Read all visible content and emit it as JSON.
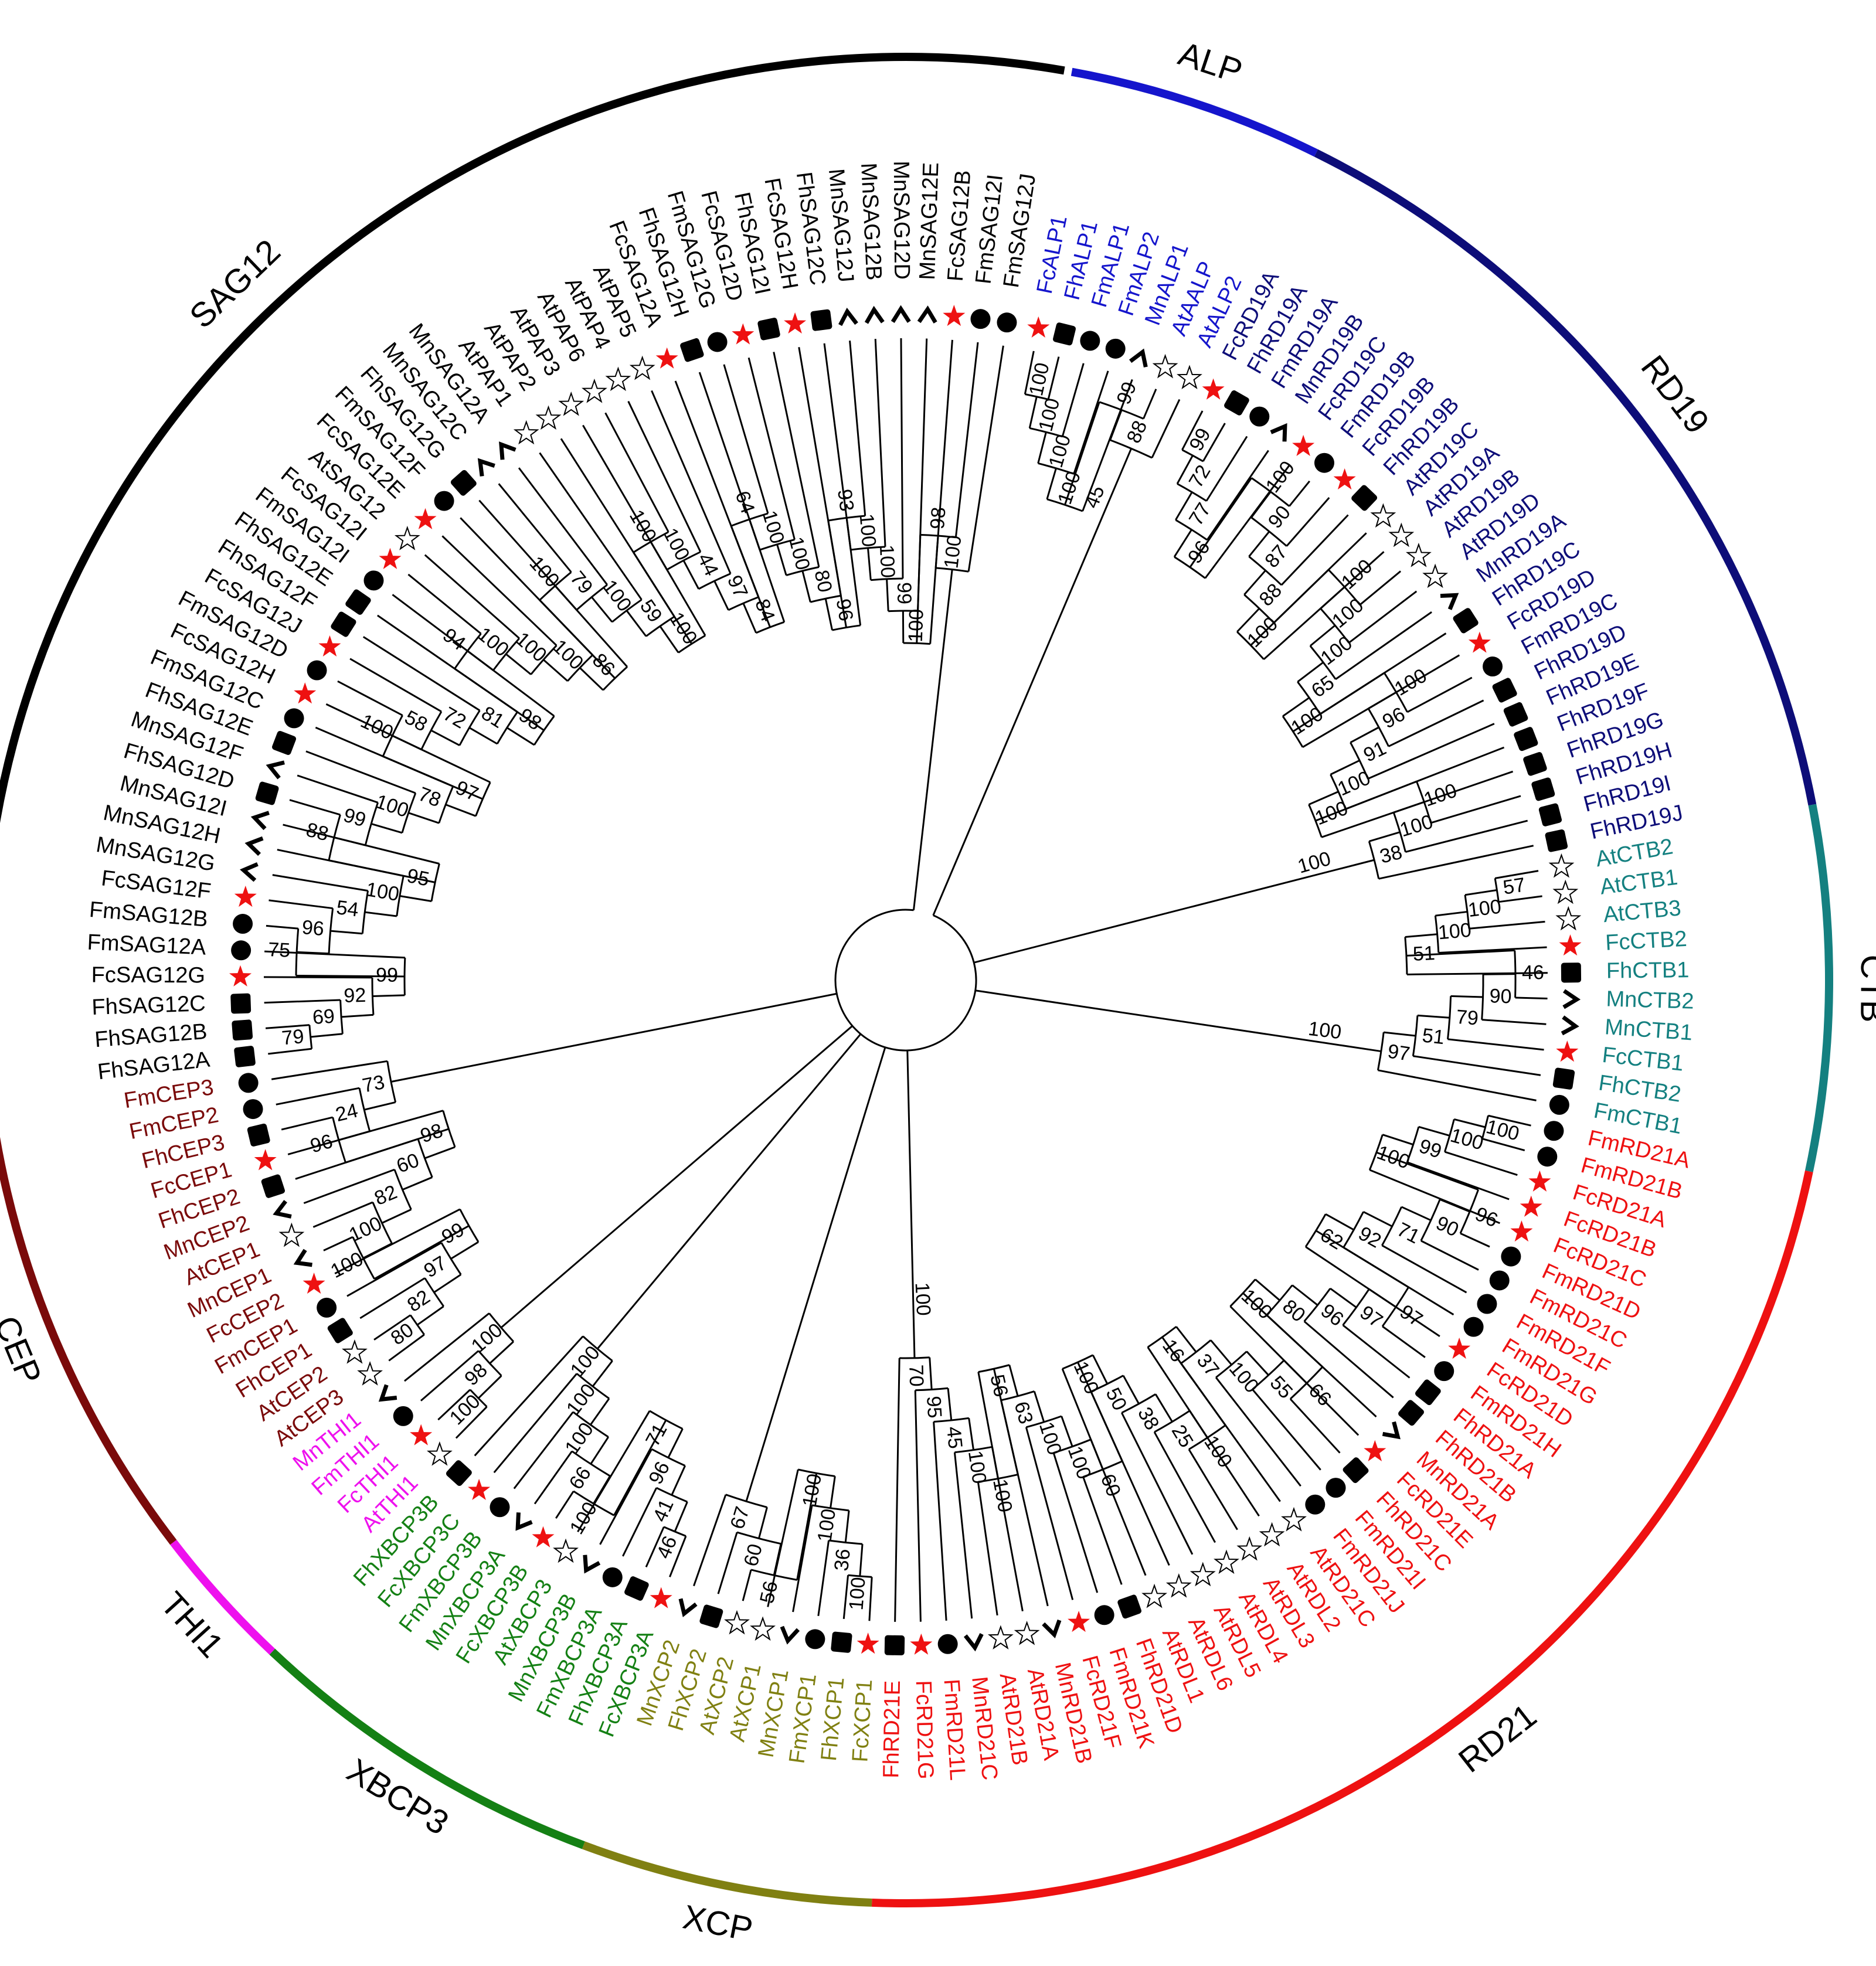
{
  "colors": {
    "ALP": "#1515cc",
    "RD19": "#0d0d78",
    "CTB": "#148080",
    "RD21": "#ee1111",
    "XCP": "#808012",
    "XBCP3": "#148014",
    "THI1": "#ee11ee",
    "CEP": "#7a0a0a",
    "SAG12": "#000000",
    "branch": "#000000",
    "red_star": "#ee1111"
  },
  "marker_legend": {
    "At": "hollow-star-icon",
    "Fc": "red-star-icon",
    "Fm": "circle-icon",
    "Fh": "square-icon",
    "Mn": "chevron-icon"
  },
  "clades": [
    {
      "id": "ALP",
      "label": "ALP",
      "color": "#1515cc"
    },
    {
      "id": "RD19",
      "label": "RD19",
      "color": "#0d0d78"
    },
    {
      "id": "CTB",
      "label": "CTB",
      "color": "#148080"
    },
    {
      "id": "RD21",
      "label": "RD21",
      "color": "#ee1111"
    },
    {
      "id": "XCP",
      "label": "XCP",
      "color": "#808012"
    },
    {
      "id": "XBCP3",
      "label": "XBCP3",
      "color": "#148014"
    },
    {
      "id": "THI1",
      "label": "THI1",
      "color": "#ee11ee"
    },
    {
      "id": "CEP",
      "label": "CEP",
      "color": "#7a0a0a"
    },
    {
      "id": "SAG12",
      "label": "SAG12",
      "color": "#000000"
    }
  ],
  "leaves": [
    {
      "label": "FcALP1",
      "clade": "ALP"
    },
    {
      "label": "FhALP1",
      "clade": "ALP"
    },
    {
      "label": "FmALP1",
      "clade": "ALP"
    },
    {
      "label": "FmALP2",
      "clade": "ALP"
    },
    {
      "label": "MnALP1",
      "clade": "ALP"
    },
    {
      "label": "AtAALP",
      "clade": "ALP"
    },
    {
      "label": "AtALP2",
      "clade": "ALP"
    },
    {
      "label": "FcRD19A",
      "clade": "RD19"
    },
    {
      "label": "FhRD19A",
      "clade": "RD19"
    },
    {
      "label": "FmRD19A",
      "clade": "RD19"
    },
    {
      "label": "MnRD19B",
      "clade": "RD19"
    },
    {
      "label": "FcRD19C",
      "clade": "RD19"
    },
    {
      "label": "FmRD19B",
      "clade": "RD19"
    },
    {
      "label": "FcRD19B",
      "clade": "RD19"
    },
    {
      "label": "FhRD19B",
      "clade": "RD19"
    },
    {
      "label": "AtRD19C",
      "clade": "RD19"
    },
    {
      "label": "AtRD19A",
      "clade": "RD19"
    },
    {
      "label": "AtRD19B",
      "clade": "RD19"
    },
    {
      "label": "AtRD19D",
      "clade": "RD19"
    },
    {
      "label": "MnRD19A",
      "clade": "RD19"
    },
    {
      "label": "FhRD19C",
      "clade": "RD19"
    },
    {
      "label": "FcRD19D",
      "clade": "RD19"
    },
    {
      "label": "FmRD19C",
      "clade": "RD19"
    },
    {
      "label": "FhRD19D",
      "clade": "RD19"
    },
    {
      "label": "FhRD19E",
      "clade": "RD19"
    },
    {
      "label": "FhRD19F",
      "clade": "RD19"
    },
    {
      "label": "FhRD19G",
      "clade": "RD19"
    },
    {
      "label": "FhRD19H",
      "clade": "RD19"
    },
    {
      "label": "FhRD19I",
      "clade": "RD19"
    },
    {
      "label": "FhRD19J",
      "clade": "RD19"
    },
    {
      "label": "AtCTB2",
      "clade": "CTB"
    },
    {
      "label": "AtCTB1",
      "clade": "CTB"
    },
    {
      "label": "AtCTB3",
      "clade": "CTB"
    },
    {
      "label": "FcCTB2",
      "clade": "CTB"
    },
    {
      "label": "FhCTB1",
      "clade": "CTB"
    },
    {
      "label": "MnCTB2",
      "clade": "CTB"
    },
    {
      "label": "MnCTB1",
      "clade": "CTB"
    },
    {
      "label": "FcCTB1",
      "clade": "CTB"
    },
    {
      "label": "FhCTB2",
      "clade": "CTB"
    },
    {
      "label": "FmCTB1",
      "clade": "CTB"
    },
    {
      "label": "FmRD21A",
      "clade": "RD21"
    },
    {
      "label": "FmRD21B",
      "clade": "RD21"
    },
    {
      "label": "FcRD21A",
      "clade": "RD21"
    },
    {
      "label": "FcRD21B",
      "clade": "RD21"
    },
    {
      "label": "FcRD21C",
      "clade": "RD21"
    },
    {
      "label": "FmRD21D",
      "clade": "RD21"
    },
    {
      "label": "FmRD21C",
      "clade": "RD21"
    },
    {
      "label": "FmRD21F",
      "clade": "RD21"
    },
    {
      "label": "FmRD21G",
      "clade": "RD21"
    },
    {
      "label": "FcRD21D",
      "clade": "RD21"
    },
    {
      "label": "FmRD21H",
      "clade": "RD21"
    },
    {
      "label": "FhRD21A",
      "clade": "RD21"
    },
    {
      "label": "FhRD21B",
      "clade": "RD21"
    },
    {
      "label": "MnRD21A",
      "clade": "RD21"
    },
    {
      "label": "FcRD21E",
      "clade": "RD21"
    },
    {
      "label": "FhRD21C",
      "clade": "RD21"
    },
    {
      "label": "FmRD21I",
      "clade": "RD21"
    },
    {
      "label": "FmRD21J",
      "clade": "RD21"
    },
    {
      "label": "AtRD21C",
      "clade": "RD21"
    },
    {
      "label": "AtRDL2",
      "clade": "RD21"
    },
    {
      "label": "AtRDL3",
      "clade": "RD21"
    },
    {
      "label": "AtRDL4",
      "clade": "RD21"
    },
    {
      "label": "AtRDL5",
      "clade": "RD21"
    },
    {
      "label": "AtRDL6",
      "clade": "RD21"
    },
    {
      "label": "AtRDL1",
      "clade": "RD21"
    },
    {
      "label": "FhRD21D",
      "clade": "RD21"
    },
    {
      "label": "FmRD21K",
      "clade": "RD21"
    },
    {
      "label": "FcRD21F",
      "clade": "RD21"
    },
    {
      "label": "MnRD21B",
      "clade": "RD21"
    },
    {
      "label": "AtRD21A",
      "clade": "RD21"
    },
    {
      "label": "AtRD21B",
      "clade": "RD21"
    },
    {
      "label": "MnRD21C",
      "clade": "RD21"
    },
    {
      "label": "FmRD21L",
      "clade": "RD21"
    },
    {
      "label": "FcRD21G",
      "clade": "RD21"
    },
    {
      "label": "FhRD21E",
      "clade": "RD21"
    },
    {
      "label": "FcXCP1",
      "clade": "XCP"
    },
    {
      "label": "FhXCP1",
      "clade": "XCP"
    },
    {
      "label": "FmXCP1",
      "clade": "XCP"
    },
    {
      "label": "MnXCP1",
      "clade": "XCP"
    },
    {
      "label": "AtXCP1",
      "clade": "XCP"
    },
    {
      "label": "AtXCP2",
      "clade": "XCP"
    },
    {
      "label": "FhXCP2",
      "clade": "XCP"
    },
    {
      "label": "MnXCP2",
      "clade": "XCP"
    },
    {
      "label": "FcXBCP3A",
      "clade": "XBCP3"
    },
    {
      "label": "FhXBCP3A",
      "clade": "XBCP3"
    },
    {
      "label": "FmXBCP3A",
      "clade": "XBCP3"
    },
    {
      "label": "MnXBCP3B",
      "clade": "XBCP3"
    },
    {
      "label": "AtXBCP3",
      "clade": "XBCP3"
    },
    {
      "label": "FcXBCP3B",
      "clade": "XBCP3"
    },
    {
      "label": "MnXBCP3A",
      "clade": "XBCP3"
    },
    {
      "label": "FmXBCP3B",
      "clade": "XBCP3"
    },
    {
      "label": "FcXBCP3C",
      "clade": "XBCP3"
    },
    {
      "label": "FhXBCP3B",
      "clade": "XBCP3"
    },
    {
      "label": "AtTHI1",
      "clade": "THI1"
    },
    {
      "label": "FcTHI1",
      "clade": "THI1"
    },
    {
      "label": "FmTHI1",
      "clade": "THI1"
    },
    {
      "label": "MnTHI1",
      "clade": "THI1"
    },
    {
      "label": "AtCEP3",
      "clade": "CEP"
    },
    {
      "label": "AtCEP2",
      "clade": "CEP"
    },
    {
      "label": "FhCEP1",
      "clade": "CEP"
    },
    {
      "label": "FmCEP1",
      "clade": "CEP"
    },
    {
      "label": "FcCEP2",
      "clade": "CEP"
    },
    {
      "label": "MnCEP1",
      "clade": "CEP"
    },
    {
      "label": "AtCEP1",
      "clade": "CEP"
    },
    {
      "label": "MnCEP2",
      "clade": "CEP"
    },
    {
      "label": "FhCEP2",
      "clade": "CEP"
    },
    {
      "label": "FcCEP1",
      "clade": "CEP"
    },
    {
      "label": "FhCEP3",
      "clade": "CEP"
    },
    {
      "label": "FmCEP2",
      "clade": "CEP"
    },
    {
      "label": "FmCEP3",
      "clade": "CEP"
    },
    {
      "label": "FhSAG12A",
      "clade": "SAG12"
    },
    {
      "label": "FhSAG12B",
      "clade": "SAG12"
    },
    {
      "label": "FhSAG12C",
      "clade": "SAG12"
    },
    {
      "label": "FcSAG12G",
      "clade": "SAG12"
    },
    {
      "label": "FmSAG12A",
      "clade": "SAG12"
    },
    {
      "label": "FmSAG12B",
      "clade": "SAG12"
    },
    {
      "label": "FcSAG12F",
      "clade": "SAG12"
    },
    {
      "label": "MnSAG12G",
      "clade": "SAG12"
    },
    {
      "label": "MnSAG12H",
      "clade": "SAG12"
    },
    {
      "label": "MnSAG12I",
      "clade": "SAG12"
    },
    {
      "label": "FhSAG12D",
      "clade": "SAG12"
    },
    {
      "label": "MnSAG12F",
      "clade": "SAG12"
    },
    {
      "label": "FhSAG12E",
      "clade": "SAG12"
    },
    {
      "label": "FmSAG12C",
      "clade": "SAG12"
    },
    {
      "label": "FcSAG12H",
      "clade": "SAG12"
    },
    {
      "label": "FmSAG12D",
      "clade": "SAG12"
    },
    {
      "label": "FcSAG12J",
      "clade": "SAG12"
    },
    {
      "label": "FhSAG12F",
      "clade": "SAG12"
    },
    {
      "label": "FhSAG12E",
      "clade": "SAG12"
    },
    {
      "label": "FmSAG12I",
      "clade": "SAG12"
    },
    {
      "label": "FcSAG12I",
      "clade": "SAG12"
    },
    {
      "label": "AtSAG12",
      "clade": "SAG12"
    },
    {
      "label": "FcSAG12E",
      "clade": "SAG12"
    },
    {
      "label": "FmSAG12F",
      "clade": "SAG12"
    },
    {
      "label": "FhSAG12G",
      "clade": "SAG12"
    },
    {
      "label": "MnSAG12C",
      "clade": "SAG12"
    },
    {
      "label": "MnSAG12A",
      "clade": "SAG12"
    },
    {
      "label": "AtPAP1",
      "clade": "SAG12"
    },
    {
      "label": "AtPAP2",
      "clade": "SAG12"
    },
    {
      "label": "AtPAP3",
      "clade": "SAG12"
    },
    {
      "label": "AtPAP6",
      "clade": "SAG12"
    },
    {
      "label": "AtPAP4",
      "clade": "SAG12"
    },
    {
      "label": "AtPAP5",
      "clade": "SAG12"
    },
    {
      "label": "FcSAG12A",
      "clade": "SAG12"
    },
    {
      "label": "FhSAG12H",
      "clade": "SAG12"
    },
    {
      "label": "FmSAG12G",
      "clade": "SAG12"
    },
    {
      "label": "FcSAG12D",
      "clade": "SAG12"
    },
    {
      "label": "FhSAG12I",
      "clade": "SAG12"
    },
    {
      "label": "FcSAG12H",
      "clade": "SAG12"
    },
    {
      "label": "FhSAG12C",
      "clade": "SAG12"
    },
    {
      "label": "MnSAG12J",
      "clade": "SAG12"
    },
    {
      "label": "MnSAG12B",
      "clade": "SAG12"
    },
    {
      "label": "MnSAG12D",
      "clade": "SAG12"
    },
    {
      "label": "MnSAG12E",
      "clade": "SAG12"
    },
    {
      "label": "FcSAG12B",
      "clade": "SAG12"
    },
    {
      "label": "FmSAG12I",
      "clade": "SAG12"
    },
    {
      "label": "FmSAG12J",
      "clade": "SAG12"
    }
  ],
  "bootstrap_values": [
    "100",
    "100",
    "100",
    "100",
    "99",
    "88",
    "99",
    "72",
    "77",
    "96",
    "100",
    "90",
    "87",
    "88",
    "100",
    "100",
    "100",
    "100",
    "65",
    "100",
    "100",
    "96",
    "91",
    "100",
    "100",
    "100",
    "100",
    "38",
    "57",
    "100",
    "100",
    "51",
    "46",
    "90",
    "79",
    "51",
    "97",
    "100",
    "100",
    "99",
    "100",
    "96",
    "90",
    "71",
    "92",
    "62",
    "97",
    "97",
    "96",
    "80",
    "100",
    "66",
    "55",
    "100",
    "37",
    "16",
    "100",
    "25",
    "38",
    "50",
    "100",
    "60",
    "100",
    "100",
    "63",
    "56",
    "100",
    "100",
    "45",
    "95",
    "70",
    "100",
    "36",
    "100",
    "100",
    "56",
    "60",
    "67",
    "46",
    "41",
    "96",
    "71",
    "100",
    "66",
    "100",
    "100",
    "100",
    "100",
    "98",
    "100",
    "80",
    "82",
    "97",
    "99",
    "100",
    "100",
    "82",
    "60",
    "98",
    "96",
    "24",
    "73",
    "79",
    "69",
    "92",
    "99",
    "75",
    "96",
    "54",
    "100",
    "95",
    "88",
    "99",
    "100",
    "78",
    "97",
    "100",
    "58",
    "72",
    "81",
    "98",
    "94",
    "100",
    "100",
    "100",
    "86",
    "100",
    "79",
    "100",
    "59",
    "100",
    "100",
    "100",
    "44",
    "97",
    "84",
    "64",
    "100",
    "100",
    "80",
    "96",
    "93",
    "100",
    "100",
    "99",
    "100",
    "98",
    "100",
    "45",
    "100",
    "100",
    "100"
  ]
}
